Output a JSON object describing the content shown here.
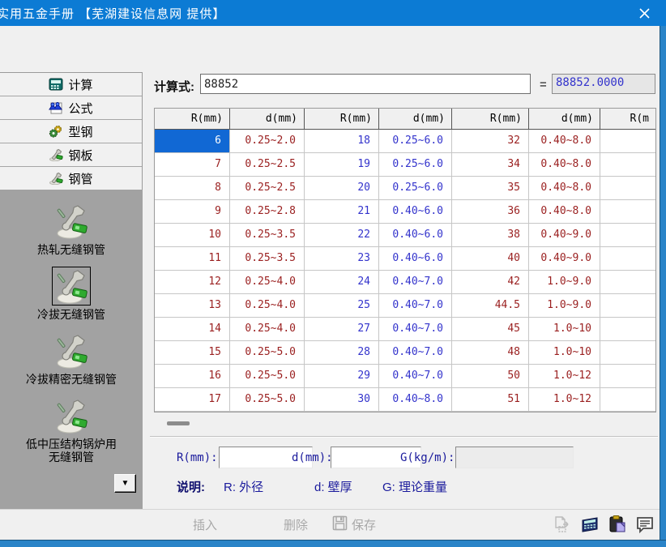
{
  "window": {
    "title": "实用五金手册 【芜湖建设信息网 提供】"
  },
  "sidebar": {
    "nav": [
      {
        "label": "计算",
        "icon": "calculator-icon"
      },
      {
        "label": "公式",
        "icon": "formula-icon"
      },
      {
        "label": "型钢",
        "icon": "gears-icon"
      },
      {
        "label": "钢板",
        "icon": "wrench-icon"
      },
      {
        "label": "钢管",
        "icon": "wrench-icon"
      }
    ],
    "pipe_types": [
      {
        "label": "热轧无缝钢管",
        "selected": false
      },
      {
        "label": "冷拔无缝钢管",
        "selected": true
      },
      {
        "label": "冷拔精密无缝钢管",
        "selected": false
      },
      {
        "label": "低中压结构锅炉用",
        "label2": "无缝钢管",
        "selected": false
      }
    ],
    "dropdown_arrow": "▼"
  },
  "formula": {
    "label": "计算式:",
    "value": "88852",
    "equals": "=",
    "result": "88852.0000"
  },
  "table": {
    "headers": [
      "R(mm)",
      "d(mm)",
      "R(mm)",
      "d(mm)",
      "R(mm)",
      "d(mm)",
      "R(m"
    ],
    "column_styles": [
      "maroon",
      "maroon",
      "blue",
      "blue",
      "maroon",
      "maroon",
      "maroon"
    ],
    "selected_cell": {
      "row": 0,
      "col": 0
    },
    "rows": [
      [
        "6",
        "0.25~2.0",
        "18",
        "0.25~6.0",
        "32",
        "0.40~8.0",
        ""
      ],
      [
        "7",
        "0.25~2.5",
        "19",
        "0.25~6.0",
        "34",
        "0.40~8.0",
        ""
      ],
      [
        "8",
        "0.25~2.5",
        "20",
        "0.25~6.0",
        "35",
        "0.40~8.0",
        ""
      ],
      [
        "9",
        "0.25~2.8",
        "21",
        "0.40~6.0",
        "36",
        "0.40~8.0",
        ""
      ],
      [
        "10",
        "0.25~3.5",
        "22",
        "0.40~6.0",
        "38",
        "0.40~9.0",
        ""
      ],
      [
        "11",
        "0.25~3.5",
        "23",
        "0.40~6.0",
        "40",
        "0.40~9.0",
        ""
      ],
      [
        "12",
        "0.25~4.0",
        "24",
        "0.40~7.0",
        "42",
        "1.0~9.0",
        ""
      ],
      [
        "13",
        "0.25~4.0",
        "25",
        "0.40~7.0",
        "44.5",
        "1.0~9.0",
        ""
      ],
      [
        "14",
        "0.25~4.0",
        "27",
        "0.40~7.0",
        "45",
        "1.0~10",
        ""
      ],
      [
        "15",
        "0.25~5.0",
        "28",
        "0.40~7.0",
        "48",
        "1.0~10",
        ""
      ],
      [
        "16",
        "0.25~5.0",
        "29",
        "0.40~7.0",
        "50",
        "1.0~12",
        ""
      ],
      [
        "17",
        "0.25~5.0",
        "30",
        "0.40~8.0",
        "51",
        "1.0~12",
        ""
      ]
    ]
  },
  "detail": {
    "r_label": "R(mm):",
    "d_label": "d(mm):",
    "g_label": "G(kg/m):",
    "r_value": "",
    "d_value": "",
    "g_value": "",
    "legend_title": "说明:",
    "legend_items": [
      "R: 外径",
      "d: 壁厚",
      "G: 理论重量"
    ]
  },
  "toolbar": {
    "insert": "插入",
    "delete": "删除",
    "save": "保存"
  },
  "colors": {
    "titlebar": "#0c7bd4",
    "accent_border": "#2a84c8",
    "selected_cell": "#1168d4",
    "maroon_text": "#9a1f1f",
    "blue_text": "#3333cc",
    "label_navy": "#1a1a9c",
    "panel_gray": "#a2a2a2"
  }
}
